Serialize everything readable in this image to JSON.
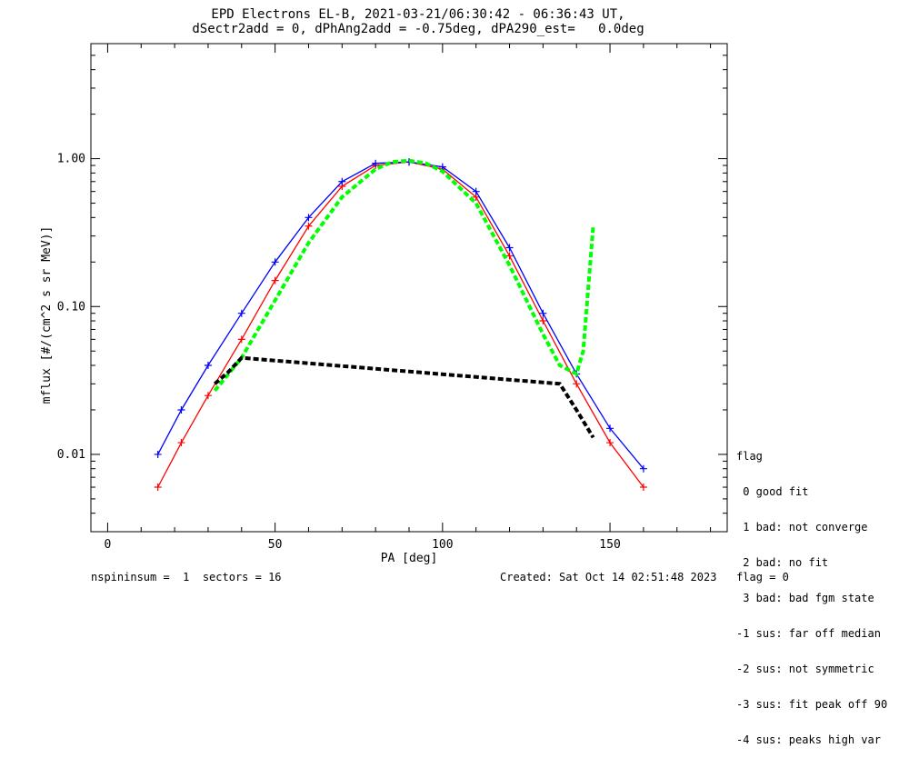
{
  "header": {
    "title_line1": "EPD Electrons EL-B, 2021-03-21/06:30:42 - 06:36:43 UT,",
    "title_line2": "dSectr2add = 0, dPhAng2add = -0.75deg, dPA290_est=   0.0deg"
  },
  "legend": {
    "heading": "flag",
    "items": [
      " 0 good fit",
      " 1 bad: not converge",
      " 2 bad: no fit",
      " 3 bad: bad fgm state",
      "-1 sus: far off median",
      "-2 sus: not symmetric",
      "-3 sus: fit peak off 90",
      "-4 sus: peaks high var"
    ]
  },
  "footer": {
    "left": "nspininsum =  1  sectors = 16",
    "right": "Created: Sat Oct 14 02:51:48 2023   flag = 0"
  },
  "colors": {
    "series_red": "#ff0000",
    "series_blue": "#0000ff",
    "fit_green": "#00ff00",
    "fit_black": "#000000"
  },
  "chart_data": {
    "type": "line",
    "xlabel": "PA [deg]",
    "ylabel": "mflux [#/(cm^2 s sr MeV)]",
    "xlim": [
      -5,
      185
    ],
    "ylim": [
      0.003,
      6
    ],
    "yscale": "log",
    "x_ticks": [
      0,
      50,
      100,
      150
    ],
    "x_tick_labels": [
      "0",
      "50",
      "100",
      "150"
    ],
    "y_ticks": [
      0.01,
      0.1,
      1.0
    ],
    "y_tick_labels": [
      "0.01",
      "0.10",
      "1.00"
    ],
    "grid": false,
    "series": [
      {
        "color": "red",
        "x": [
          15,
          22,
          30,
          40,
          50,
          60,
          70,
          80,
          90,
          100,
          110,
          120,
          130,
          140,
          150,
          160
        ],
        "y": [
          0.006,
          0.012,
          0.025,
          0.06,
          0.15,
          0.35,
          0.65,
          0.9,
          0.95,
          0.85,
          0.55,
          0.22,
          0.08,
          0.03,
          0.012,
          0.006
        ]
      },
      {
        "color": "blue",
        "x": [
          15,
          22,
          30,
          40,
          50,
          60,
          70,
          80,
          90,
          100,
          110,
          120,
          130,
          140,
          150,
          160
        ],
        "y": [
          0.01,
          0.02,
          0.04,
          0.09,
          0.2,
          0.4,
          0.7,
          0.93,
          0.95,
          0.88,
          0.6,
          0.25,
          0.09,
          0.035,
          0.015,
          0.008
        ]
      },
      {
        "color": "green",
        "x": [
          32,
          40,
          50,
          60,
          70,
          80,
          85,
          90,
          95,
          100,
          110,
          120,
          130,
          135,
          140,
          142,
          145
        ],
        "y": [
          0.027,
          0.045,
          0.11,
          0.27,
          0.55,
          0.85,
          0.95,
          0.97,
          0.93,
          0.82,
          0.5,
          0.19,
          0.065,
          0.04,
          0.035,
          0.05,
          0.35
        ]
      },
      {
        "color": "black",
        "x": [
          32,
          36,
          40,
          135,
          140,
          145
        ],
        "y": [
          0.03,
          0.036,
          0.045,
          0.03,
          0.02,
          0.013
        ]
      }
    ]
  }
}
